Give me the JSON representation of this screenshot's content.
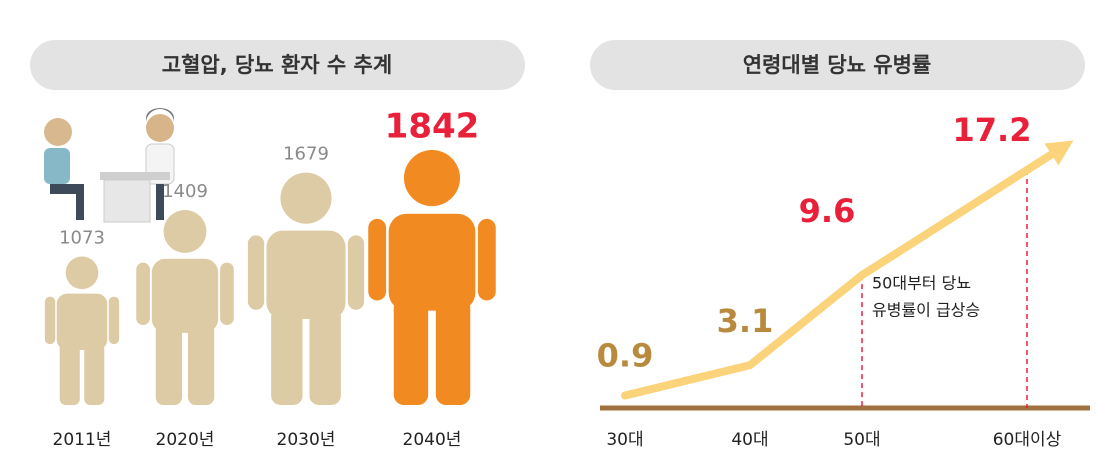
{
  "chart_data": [
    {
      "type": "pictogram",
      "title": "고혈압, 당뇨 환자 수 추계",
      "categories": [
        "2011년",
        "2020년",
        "2030년",
        "2040년"
      ],
      "values": [
        1073,
        1409,
        1679,
        1842
      ],
      "colors": [
        "#dccba4",
        "#dccba4",
        "#dccba4",
        "#f28a22"
      ],
      "value_label_colors": [
        "#8a8a8a",
        "#8a8a8a",
        "#8a8a8a",
        "#e8203a"
      ]
    },
    {
      "type": "line",
      "title": "연령대별 당뇨 유병률",
      "categories": [
        "30대",
        "40대",
        "50대",
        "60대이상"
      ],
      "values": [
        0.9,
        3.1,
        9.6,
        17.2
      ],
      "color": "#fbd37a",
      "value_label_colors": [
        "#b98a3e",
        "#b98a3e",
        "#e8203a",
        "#e8203a"
      ],
      "annotation": [
        "50대부터 당뇨",
        "유병률이 급상승"
      ]
    }
  ]
}
